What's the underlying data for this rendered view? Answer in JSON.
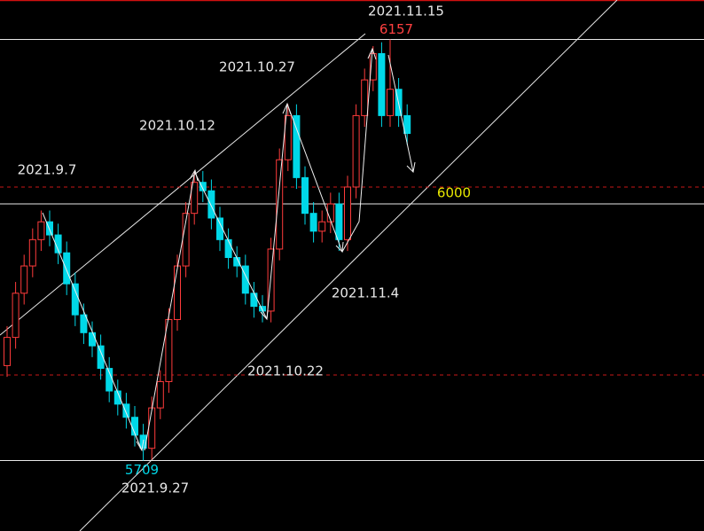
{
  "chart_data": {
    "type": "candlestick",
    "up_color": "#ff3b3b",
    "down_color": "#00d8e8",
    "ylim": [
      5634,
      6199
    ],
    "open": [
      5810,
      5840,
      5887,
      5916,
      5944,
      5963,
      5949,
      5930,
      5897,
      5864,
      5845,
      5831,
      5807,
      5783,
      5769,
      5755,
      5736,
      5722,
      5765,
      5793,
      5859,
      5916,
      5972,
      6005,
      5996,
      5967,
      5944,
      5925,
      5916,
      5887,
      5873,
      5868,
      5934,
      6029,
      6076,
      6010,
      5972,
      5953,
      5963,
      5982,
      5944,
      6000,
      6076,
      6114,
      6142,
      6076,
      6104,
      6076
    ],
    "high": [
      5852,
      5899,
      5928,
      5956,
      5975,
      5975,
      5961,
      5942,
      5909,
      5876,
      5857,
      5843,
      5819,
      5795,
      5781,
      5767,
      5748,
      5777,
      5805,
      5871,
      5928,
      5984,
      6017,
      6017,
      6008,
      5979,
      5956,
      5937,
      5928,
      5899,
      5885,
      5946,
      6041,
      6088,
      6088,
      6022,
      5984,
      5975,
      5994,
      5994,
      6012,
      6088,
      6126,
      6150,
      6154,
      6157,
      6116,
      6088
    ],
    "low": [
      5798,
      5828,
      5875,
      5904,
      5932,
      5937,
      5918,
      5885,
      5852,
      5833,
      5819,
      5795,
      5771,
      5757,
      5743,
      5724,
      5709,
      5710,
      5753,
      5781,
      5847,
      5904,
      5960,
      5984,
      5955,
      5932,
      5913,
      5904,
      5875,
      5861,
      5856,
      5856,
      5922,
      6017,
      5998,
      5960,
      5941,
      5941,
      5951,
      5932,
      5932,
      5988,
      6064,
      6102,
      6064,
      6064,
      6064,
      6045
    ],
    "close": [
      5840,
      5887,
      5916,
      5944,
      5963,
      5949,
      5930,
      5897,
      5864,
      5845,
      5831,
      5807,
      5783,
      5769,
      5755,
      5736,
      5722,
      5765,
      5793,
      5859,
      5916,
      5972,
      6005,
      5996,
      5967,
      5944,
      5925,
      5916,
      5887,
      5873,
      5868,
      5934,
      6029,
      6076,
      6010,
      5972,
      5953,
      5963,
      5982,
      5944,
      6000,
      6076,
      6114,
      6142,
      6076,
      6104,
      6076,
      6057
    ],
    "solid_levels": [
      6157,
      5982,
      5709
    ],
    "dashed_levels": [
      6000,
      5800
    ],
    "price_labels": [
      {
        "value": 6157,
        "color": "#ff4040"
      },
      {
        "value": 6000,
        "color": "#e8e800"
      },
      {
        "value": 5709,
        "color": "#00d8e8"
      }
    ],
    "date_labels": [
      "2021.11.15",
      "2021.10.27",
      "2021.10.12",
      "2021.9.7",
      "2021.11.4",
      "2021.10.22",
      "2021.9.27"
    ]
  }
}
